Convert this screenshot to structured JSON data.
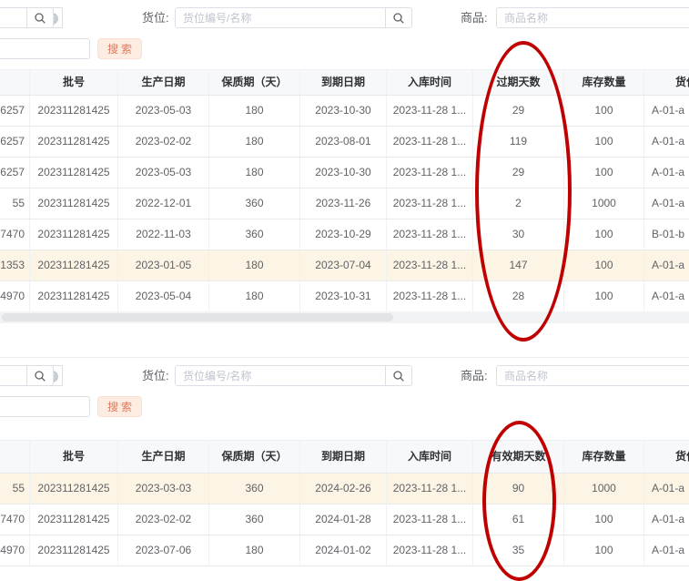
{
  "colors": {
    "annotation": "#c00000",
    "header_bg": "#f7f8fa",
    "highlight_row_bg": "#fcf4e4",
    "search_button_bg": "#fcece2",
    "search_button_text": "#e07a5a",
    "border": "#ebeef5"
  },
  "sections": [
    {
      "name": "expired-goods-table",
      "filter": {
        "keyword_value": "",
        "location_label": "货位:",
        "location_placeholder": "货位编号/名称",
        "product_label": "商品:",
        "product_placeholder": "商品名称",
        "search_button": "搜索"
      },
      "columns": [
        "",
        "批号",
        "生产日期",
        "保质期（天）",
        "到期日期",
        "入库时间",
        "过期天数",
        "库存数量",
        "货位"
      ],
      "rows": [
        {
          "highlight": false,
          "cells": [
            "6257",
            "202311281425",
            "2023-05-03",
            "180",
            "2023-10-30",
            "2023-11-28 1...",
            "29",
            "100",
            "A-01-a"
          ]
        },
        {
          "highlight": false,
          "cells": [
            "6257",
            "202311281425",
            "2023-02-02",
            "180",
            "2023-08-01",
            "2023-11-28 1...",
            "119",
            "100",
            "A-01-a"
          ]
        },
        {
          "highlight": false,
          "cells": [
            "6257",
            "202311281425",
            "2023-05-03",
            "180",
            "2023-10-30",
            "2023-11-28 1...",
            "29",
            "100",
            "A-01-a"
          ]
        },
        {
          "highlight": false,
          "cells": [
            "55",
            "202311281425",
            "2022-12-01",
            "360",
            "2023-11-26",
            "2023-11-28 1...",
            "2",
            "1000",
            "A-01-a"
          ]
        },
        {
          "highlight": false,
          "cells": [
            "7470",
            "202311281425",
            "2022-11-03",
            "360",
            "2023-10-29",
            "2023-11-28 1...",
            "30",
            "100",
            "B-01-b"
          ]
        },
        {
          "highlight": true,
          "cells": [
            "1353",
            "202311281425",
            "2023-01-05",
            "180",
            "2023-07-04",
            "2023-11-28 1...",
            "147",
            "100",
            "A-01-a"
          ]
        },
        {
          "highlight": false,
          "cells": [
            "4970",
            "202311281425",
            "2023-05-04",
            "180",
            "2023-10-31",
            "2023-11-28 1...",
            "28",
            "100",
            "A-01-a"
          ]
        }
      ]
    },
    {
      "name": "valid-goods-table",
      "filter": {
        "keyword_value": "",
        "location_label": "货位:",
        "location_placeholder": "货位编号/名称",
        "product_label": "商品:",
        "product_placeholder": "商品名称",
        "search_button": "搜索"
      },
      "columns": [
        "",
        "批号",
        "生产日期",
        "保质期（天）",
        "到期日期",
        "入库时间",
        "有效期天数",
        "库存数量",
        "货位"
      ],
      "rows": [
        {
          "highlight": true,
          "cells": [
            "55",
            "202311281425",
            "2023-03-03",
            "360",
            "2024-02-26",
            "2023-11-28 1...",
            "90",
            "1000",
            "A-01-a"
          ]
        },
        {
          "highlight": false,
          "cells": [
            "7470",
            "202311281425",
            "2023-02-02",
            "360",
            "2024-01-28",
            "2023-11-28 1...",
            "61",
            "100",
            "A-01-a"
          ]
        },
        {
          "highlight": false,
          "cells": [
            "4970",
            "202311281425",
            "2023-07-06",
            "180",
            "2024-01-02",
            "2023-11-28 1...",
            "35",
            "100",
            "A-01-a"
          ]
        }
      ]
    }
  ],
  "annotations": [
    {
      "target_column": "过期天数"
    },
    {
      "target_column": "有效期天数"
    }
  ]
}
